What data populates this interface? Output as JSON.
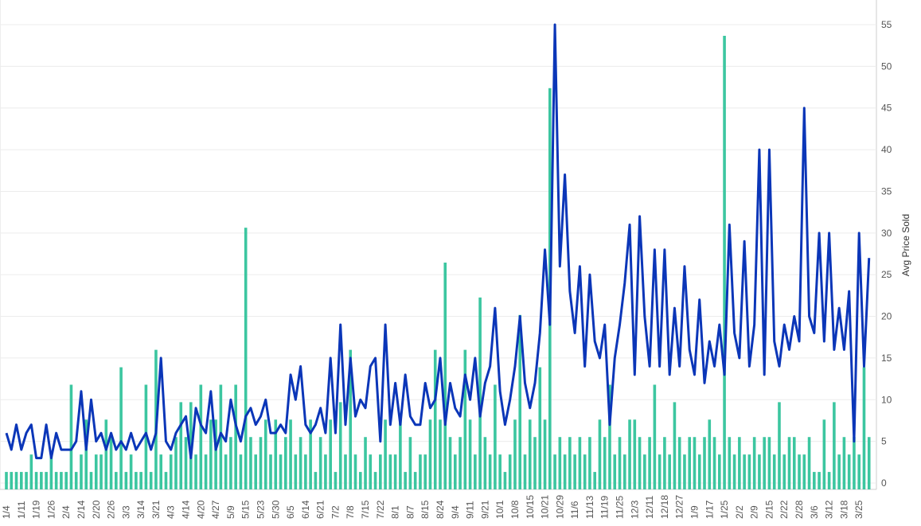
{
  "chart_data": {
    "type": "combo",
    "categories": [
      "1/4",
      null,
      null,
      "1/11",
      null,
      null,
      "1/19",
      null,
      null,
      "1/26",
      null,
      null,
      "2/4",
      null,
      null,
      "2/14",
      null,
      null,
      "2/20",
      null,
      null,
      "2/26",
      null,
      null,
      "3/3",
      null,
      null,
      "3/14",
      null,
      null,
      "3/21",
      null,
      null,
      "4/3",
      null,
      null,
      "4/14",
      null,
      null,
      "4/20",
      null,
      null,
      "4/27",
      null,
      null,
      "5/9",
      null,
      null,
      "5/15",
      null,
      null,
      "5/23",
      null,
      null,
      "5/30",
      null,
      null,
      "6/5",
      null,
      null,
      "6/14",
      null,
      null,
      "6/21",
      null,
      null,
      "7/2",
      null,
      null,
      "7/8",
      null,
      null,
      "7/15",
      null,
      null,
      "7/22",
      null,
      null,
      "8/1",
      null,
      null,
      "8/7",
      null,
      null,
      "8/15",
      null,
      null,
      "8/24",
      null,
      null,
      "9/4",
      null,
      null,
      "9/11",
      null,
      null,
      "9/21",
      null,
      null,
      "10/1",
      null,
      null,
      "10/8",
      null,
      null,
      "10/15",
      null,
      null,
      "10/21",
      null,
      null,
      "10/29",
      null,
      null,
      "11/6",
      null,
      null,
      "11/13",
      null,
      null,
      "11/19",
      null,
      null,
      "11/25",
      null,
      null,
      "12/3",
      null,
      null,
      "12/11",
      null,
      null,
      "12/18",
      null,
      null,
      "12/27",
      null,
      null,
      "1/9",
      null,
      null,
      "1/17",
      null,
      null,
      "1/25",
      null,
      null,
      "2/2",
      null,
      null,
      "2/9",
      null,
      null,
      "2/15",
      null,
      null,
      "2/22",
      null,
      null,
      "2/28",
      null,
      null,
      "3/6",
      null,
      null,
      "3/12",
      null,
      null,
      "3/18",
      null,
      null,
      "3/25",
      null,
      null
    ],
    "bars": {
      "color": "#3cc6a0",
      "ylim": [
        0,
        26
      ],
      "values": [
        1,
        1,
        1,
        1,
        1,
        2,
        1,
        1,
        1,
        2,
        1,
        1,
        1,
        6,
        1,
        2,
        4,
        1,
        2,
        2,
        4,
        3,
        1,
        7,
        1,
        2,
        1,
        1,
        6,
        1,
        8,
        2,
        1,
        2,
        3,
        5,
        3,
        5,
        2,
        6,
        2,
        4,
        4,
        6,
        2,
        3,
        6,
        2,
        15,
        3,
        2,
        3,
        4,
        2,
        4,
        2,
        3,
        4,
        2,
        3,
        2,
        4,
        1,
        3,
        2,
        4,
        1,
        5,
        2,
        8,
        2,
        1,
        3,
        2,
        1,
        2,
        4,
        2,
        2,
        4,
        1,
        3,
        1,
        2,
        2,
        4,
        8,
        4,
        13,
        3,
        2,
        3,
        8,
        4,
        2,
        11,
        3,
        2,
        6,
        2,
        1,
        2,
        4,
        10,
        2,
        4,
        3,
        7,
        4,
        23,
        2,
        3,
        2,
        3,
        2,
        3,
        2,
        3,
        1,
        4,
        3,
        6,
        2,
        3,
        2,
        4,
        4,
        3,
        2,
        3,
        6,
        2,
        3,
        2,
        5,
        3,
        2,
        3,
        3,
        2,
        3,
        4,
        3,
        2,
        26,
        3,
        2,
        3,
        2,
        2,
        3,
        2,
        3,
        3,
        2,
        5,
        2,
        3,
        3,
        2,
        2,
        3,
        1,
        1,
        4,
        1,
        5,
        2,
        3,
        2,
        3,
        2,
        7,
        3
      ]
    },
    "line": {
      "color": "#0b36b8",
      "axis": "y2",
      "values": [
        6,
        4,
        7,
        4,
        6,
        7,
        3,
        3,
        7,
        3,
        6,
        4,
        4,
        4,
        5,
        11,
        4,
        10,
        5,
        6,
        4,
        6,
        4,
        5,
        4,
        6,
        4,
        5,
        6,
        4,
        6,
        15,
        5,
        4,
        6,
        7,
        8,
        3,
        9,
        7,
        6,
        11,
        4,
        6,
        5,
        10,
        7,
        5,
        8,
        9,
        7,
        8,
        10,
        6,
        6,
        7,
        6,
        13,
        10,
        14,
        7,
        6,
        7,
        9,
        6,
        15,
        6,
        19,
        7,
        15,
        8,
        10,
        9,
        14,
        15,
        5,
        19,
        7,
        12,
        7,
        13,
        8,
        7,
        7,
        12,
        9,
        10,
        15,
        7,
        12,
        9,
        8,
        13,
        10,
        15,
        8,
        12,
        14,
        21,
        11,
        7,
        10,
        14,
        20,
        12,
        9,
        12,
        18,
        28,
        19,
        55,
        26,
        37,
        23,
        18,
        26,
        14,
        25,
        17,
        15,
        19,
        7,
        15,
        19,
        24,
        31,
        13,
        32,
        20,
        14,
        28,
        14,
        28,
        13,
        21,
        14,
        26,
        16,
        13,
        22,
        12,
        17,
        14,
        19,
        13,
        31,
        18,
        15,
        29,
        14,
        19,
        40,
        13,
        40,
        17,
        14,
        19,
        16,
        20,
        17,
        45,
        20,
        18,
        30,
        17,
        30,
        16,
        21,
        16,
        23,
        5,
        30,
        14,
        27
      ]
    },
    "y2lim": [
      0,
      55
    ],
    "y2ticks": [
      0,
      5,
      10,
      15,
      20,
      25,
      30,
      35,
      40,
      45,
      50,
      55
    ],
    "y2label": "Avg Price Sold",
    "grid": true
  }
}
